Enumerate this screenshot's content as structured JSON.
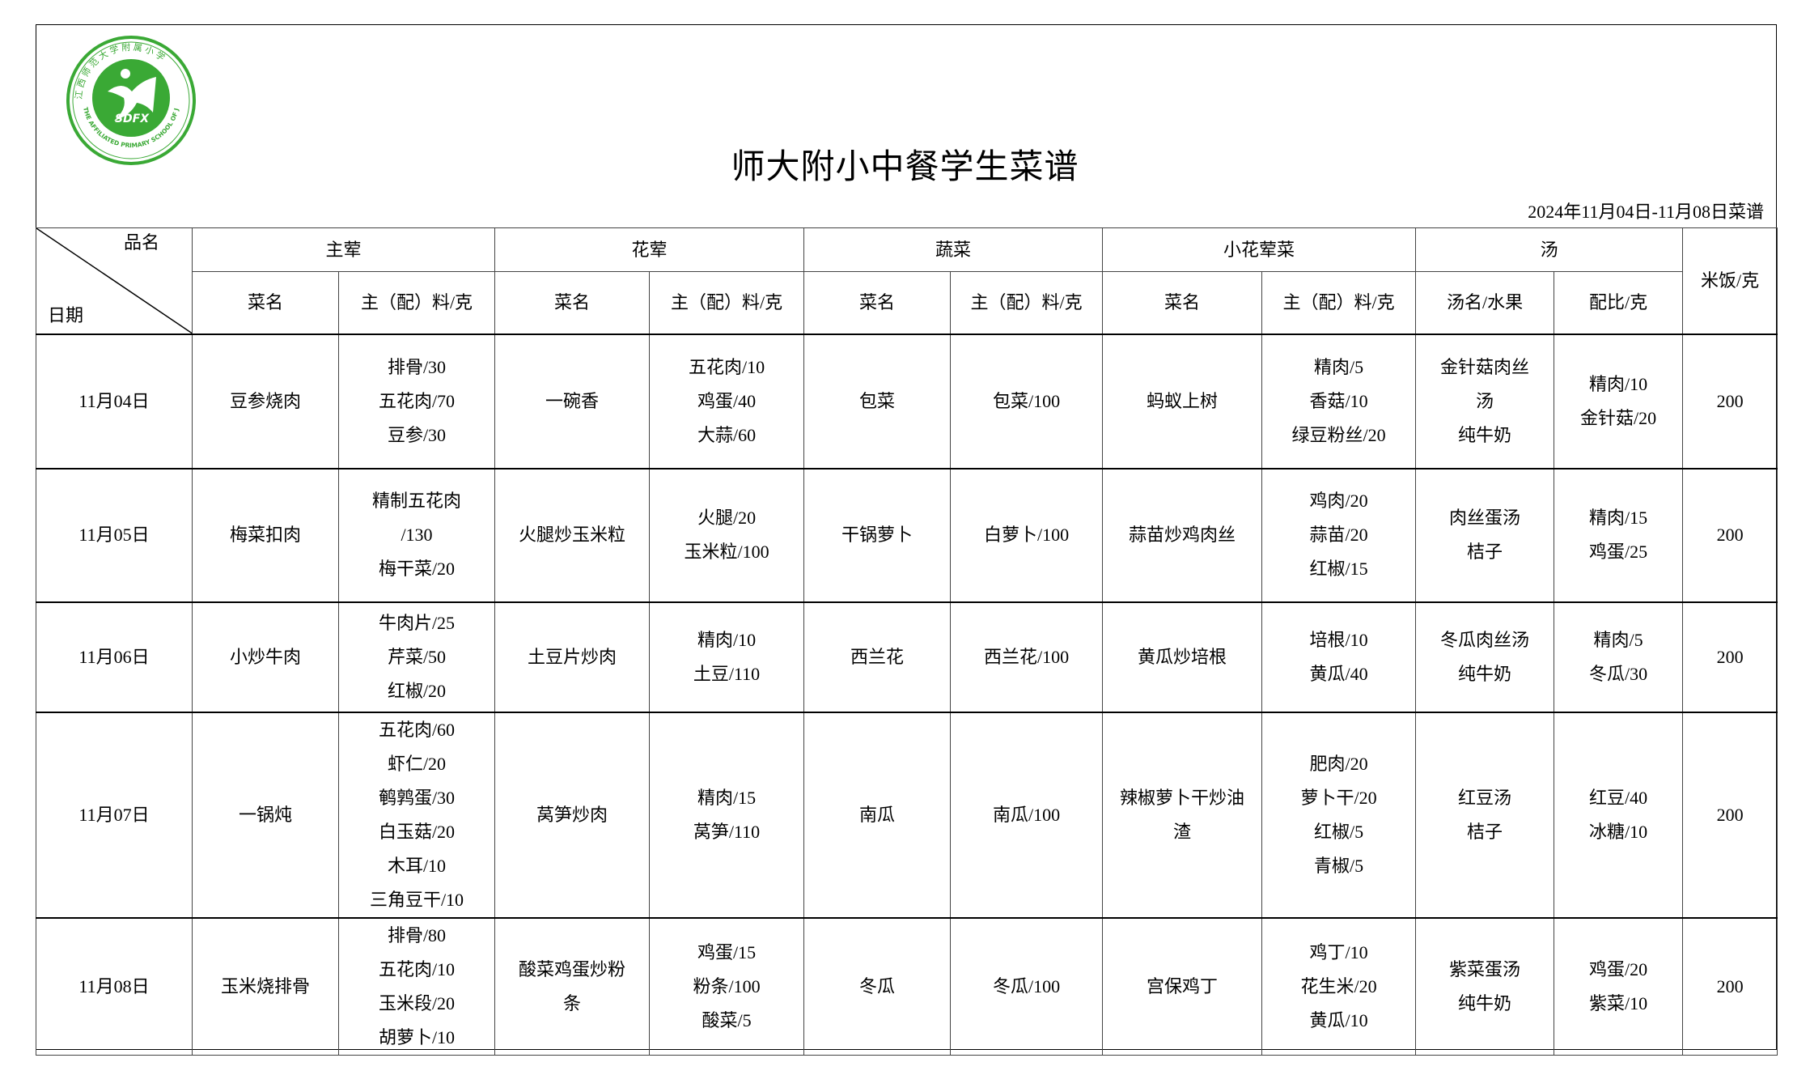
{
  "logo": {
    "text_cn": "江西师范大学附属小学",
    "text_en": "THE AFFILIATED PRIMARY SCHOOL OF JXNU",
    "abbr": "SDFX",
    "color": "#3aa935"
  },
  "title": "师大附小中餐学生菜谱",
  "date_range": "2024年11月04日-11月08日菜谱",
  "header": {
    "corner_top": "品名",
    "corner_bottom": "日期",
    "groups": [
      "主荤",
      "花荤",
      "蔬菜",
      "小花荤菜",
      "汤"
    ],
    "rice": "米饭/克",
    "sub": [
      "菜名",
      "主（配）料/克",
      "菜名",
      "主（配）料/克",
      "菜名",
      "主（配）料/克",
      "菜名",
      "主（配）料/克",
      "汤名/水果",
      "配比/克"
    ]
  },
  "rows": [
    {
      "date": "11月04日",
      "cells": [
        [
          "豆参烧肉"
        ],
        [
          "排骨/30",
          "五花肉/70",
          "豆参/30"
        ],
        [
          "一碗香"
        ],
        [
          "五花肉/10",
          "鸡蛋/40",
          "大蒜/60"
        ],
        [
          "包菜"
        ],
        [
          "包菜/100"
        ],
        [
          "蚂蚁上树"
        ],
        [
          "精肉/5",
          "香菇/10",
          "绿豆粉丝/20"
        ],
        [
          "金针菇肉丝",
          "汤",
          "纯牛奶"
        ],
        [
          "精肉/10",
          "金针菇/20"
        ]
      ],
      "rice": "200"
    },
    {
      "date": "11月05日",
      "cells": [
        [
          "梅菜扣肉"
        ],
        [
          "精制五花肉",
          "/130",
          "梅干菜/20"
        ],
        [
          "火腿炒玉米粒"
        ],
        [
          "火腿/20",
          "玉米粒/100"
        ],
        [
          "干锅萝卜"
        ],
        [
          "白萝卜/100"
        ],
        [
          "蒜苗炒鸡肉丝"
        ],
        [
          "鸡肉/20",
          "蒜苗/20",
          "红椒/15"
        ],
        [
          "肉丝蛋汤",
          "桔子"
        ],
        [
          "精肉/15",
          "鸡蛋/25"
        ]
      ],
      "rice": "200"
    },
    {
      "date": "11月06日",
      "cells": [
        [
          "小炒牛肉"
        ],
        [
          "牛肉片/25",
          "芹菜/50",
          "红椒/20"
        ],
        [
          "土豆片炒肉"
        ],
        [
          "精肉/10",
          "土豆/110"
        ],
        [
          "西兰花"
        ],
        [
          "西兰花/100"
        ],
        [
          "黄瓜炒培根"
        ],
        [
          "培根/10",
          "黄瓜/40"
        ],
        [
          "冬瓜肉丝汤",
          "纯牛奶"
        ],
        [
          "精肉/5",
          "冬瓜/30"
        ]
      ],
      "rice": "200"
    },
    {
      "date": "11月07日",
      "cells": [
        [
          "一锅炖"
        ],
        [
          "五花肉/60",
          "虾仁/20",
          "鹌鹑蛋/30",
          "白玉菇/20",
          "木耳/10",
          "三角豆干/10"
        ],
        [
          "莴笋炒肉"
        ],
        [
          "精肉/15",
          "莴笋/110"
        ],
        [
          "南瓜"
        ],
        [
          "南瓜/100"
        ],
        [
          "辣椒萝卜干炒油",
          "渣"
        ],
        [
          "肥肉/20",
          "萝卜干/20",
          "红椒/5",
          "青椒/5"
        ],
        [
          "红豆汤",
          "桔子"
        ],
        [
          "红豆/40",
          "冰糖/10"
        ]
      ],
      "rice": "200"
    },
    {
      "date": "11月08日",
      "cells": [
        [
          "玉米烧排骨"
        ],
        [
          "排骨/80",
          "五花肉/10",
          "玉米段/20",
          "胡萝卜/10"
        ],
        [
          "酸菜鸡蛋炒粉",
          "条"
        ],
        [
          "鸡蛋/15",
          "粉条/100",
          "酸菜/5"
        ],
        [
          "冬瓜"
        ],
        [
          "冬瓜/100"
        ],
        [
          "宫保鸡丁"
        ],
        [
          "鸡丁/10",
          "花生米/20",
          "黄瓜/10"
        ],
        [
          "紫菜蛋汤",
          "纯牛奶"
        ],
        [
          "鸡蛋/20",
          "紫菜/10"
        ]
      ],
      "rice": "200"
    }
  ]
}
